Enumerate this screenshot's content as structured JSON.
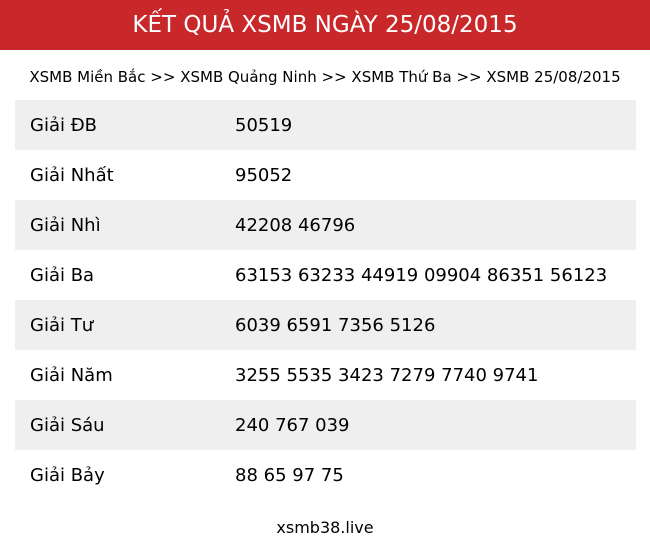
{
  "header": {
    "title": "KẾT QUẢ XSMB NGÀY 25/08/2015",
    "color": "#c9282a"
  },
  "breadcrumb": [
    {
      "label": "XSMB Miền Bắc"
    },
    {
      "sep": ">>"
    },
    {
      "label": "XSMB Quảng Ninh"
    },
    {
      "sep": ">>"
    },
    {
      "label": "XSMB Thứ Ba"
    },
    {
      "sep": ">>"
    },
    {
      "label": "XSMB 25/08/2015"
    }
  ],
  "results": [
    {
      "label": "Giải ĐB",
      "value": "50519"
    },
    {
      "label": "Giải Nhất",
      "value": "95052"
    },
    {
      "label": "Giải Nhì",
      "value": "42208 46796"
    },
    {
      "label": "Giải Ba",
      "value": "63153 63233 44919 09904 86351 56123"
    },
    {
      "label": "Giải Tư",
      "value": "6039 6591 7356 5126"
    },
    {
      "label": "Giải Năm",
      "value": "3255 5535 3423 7279 7740 9741"
    },
    {
      "label": "Giải Sáu",
      "value": "240 767 039"
    },
    {
      "label": "Giải Bảy",
      "value": "88 65 97 75"
    }
  ],
  "footer": {
    "text": "xsmb38.live"
  }
}
